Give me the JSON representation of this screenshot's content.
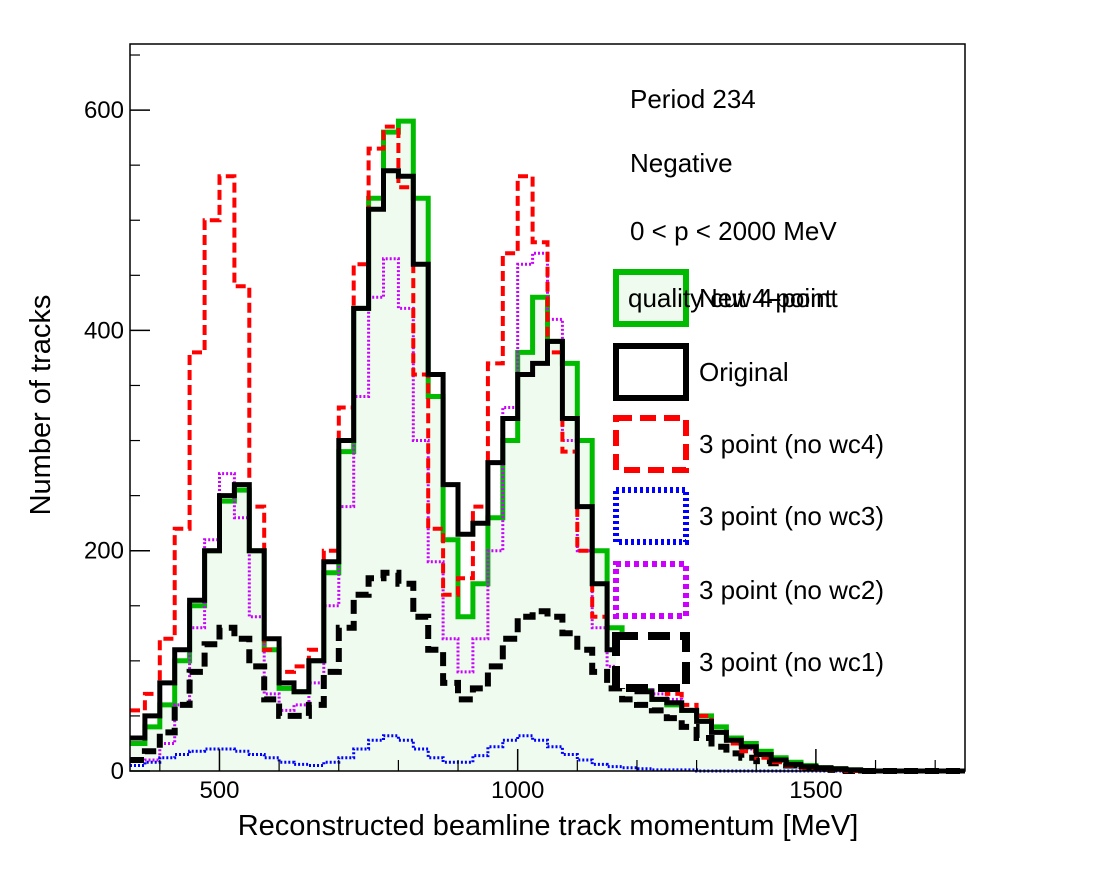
{
  "chart_data": {
    "type": "line",
    "title": "",
    "xlabel": "Reconstructed beamline track momentum [MeV]",
    "ylabel": "Number of tracks",
    "xlim": [
      350,
      1750
    ],
    "ylim": [
      0,
      660
    ],
    "xticks": [
      500,
      1000,
      1500
    ],
    "yticks": [
      0,
      200,
      400,
      600
    ],
    "grid": false,
    "legend_position": "right",
    "annotations": [
      "Period 234",
      "Negative",
      "0 < p < 2000 MeV"
    ],
    "x": [
      350,
      375,
      400,
      425,
      450,
      475,
      500,
      525,
      550,
      575,
      600,
      625,
      650,
      675,
      700,
      725,
      750,
      775,
      800,
      825,
      850,
      875,
      900,
      925,
      950,
      975,
      1000,
      1025,
      1050,
      1075,
      1100,
      1125,
      1150,
      1175,
      1200,
      1225,
      1250,
      1275,
      1300,
      1325,
      1350,
      1375,
      1400,
      1425,
      1450,
      1475,
      1500,
      1525,
      1550,
      1575,
      1600,
      1625,
      1650,
      1675,
      1700,
      1725,
      1750
    ],
    "series": [
      {
        "name": "New 4-point",
        "label_overlap": "quality cut 4-point",
        "color": "#00bb00",
        "dash": "solid",
        "fill": "#eefbee",
        "values": [
          25,
          40,
          60,
          100,
          150,
          200,
          245,
          255,
          200,
          110,
          75,
          72,
          100,
          180,
          290,
          420,
          520,
          580,
          590,
          520,
          340,
          210,
          140,
          170,
          230,
          300,
          380,
          430,
          390,
          370,
          300,
          200,
          130,
          90,
          75,
          65,
          60,
          55,
          50,
          40,
          30,
          25,
          18,
          12,
          8,
          5,
          3,
          2,
          1,
          0,
          0,
          0,
          0,
          0,
          0,
          0,
          0
        ]
      },
      {
        "name": "Original",
        "color": "#000000",
        "dash": "solid",
        "values": [
          30,
          50,
          80,
          110,
          155,
          200,
          250,
          260,
          200,
          120,
          80,
          72,
          100,
          190,
          300,
          420,
          510,
          545,
          540,
          460,
          360,
          260,
          215,
          225,
          280,
          320,
          360,
          370,
          390,
          320,
          240,
          170,
          110,
          80,
          72,
          65,
          62,
          55,
          45,
          35,
          28,
          22,
          15,
          10,
          6,
          4,
          3,
          2,
          1,
          0,
          0,
          0,
          0,
          0,
          0,
          0,
          0
        ]
      },
      {
        "name": "3 point (no wc4)",
        "color": "#ff0000",
        "dash": "dashed",
        "values": [
          55,
          70,
          120,
          220,
          380,
          500,
          540,
          440,
          240,
          110,
          90,
          95,
          110,
          200,
          330,
          460,
          565,
          585,
          530,
          360,
          220,
          160,
          175,
          240,
          370,
          470,
          540,
          480,
          380,
          290,
          200,
          140,
          110,
          100,
          95,
          80,
          70,
          60,
          50,
          35,
          25,
          18,
          12,
          8,
          5,
          3,
          2,
          1,
          0,
          0,
          0,
          0,
          0,
          0,
          0,
          0,
          0
        ]
      },
      {
        "name": "3 point (no wc3)",
        "color": "#0000ff",
        "dash": "dotted",
        "values": [
          5,
          8,
          12,
          15,
          18,
          20,
          20,
          18,
          15,
          12,
          8,
          6,
          5,
          8,
          12,
          20,
          28,
          32,
          28,
          20,
          12,
          8,
          8,
          14,
          22,
          28,
          32,
          28,
          22,
          15,
          10,
          6,
          4,
          3,
          2,
          1,
          1,
          1,
          0,
          0,
          0,
          0,
          0,
          0,
          0,
          0,
          0,
          0,
          0,
          0,
          0,
          0,
          0,
          0,
          0,
          0,
          0
        ]
      },
      {
        "name": "3 point (no wc2)",
        "color": "#cc00ff",
        "dash": "dotted",
        "values": [
          5,
          10,
          25,
          60,
          130,
          210,
          270,
          230,
          140,
          70,
          55,
          60,
          80,
          150,
          240,
          340,
          430,
          465,
          420,
          300,
          190,
          120,
          90,
          120,
          200,
          330,
          460,
          470,
          410,
          300,
          200,
          130,
          95,
          85,
          80,
          70,
          65,
          55,
          45,
          35,
          28,
          20,
          14,
          10,
          6,
          4,
          3,
          2,
          1,
          0,
          0,
          0,
          0,
          0,
          0,
          0,
          0
        ]
      },
      {
        "name": "3 point (no wc1)",
        "color": "#000000",
        "dash": "dashed-thick",
        "values": [
          10,
          18,
          35,
          60,
          90,
          115,
          130,
          120,
          95,
          65,
          50,
          50,
          60,
          90,
          130,
          160,
          175,
          180,
          170,
          140,
          110,
          80,
          65,
          75,
          95,
          120,
          140,
          145,
          140,
          125,
          110,
          90,
          75,
          65,
          60,
          55,
          48,
          40,
          30,
          22,
          16,
          12,
          9,
          7,
          5,
          3,
          2,
          1,
          0,
          0,
          0,
          0,
          0,
          0,
          0,
          0,
          0
        ]
      }
    ]
  }
}
